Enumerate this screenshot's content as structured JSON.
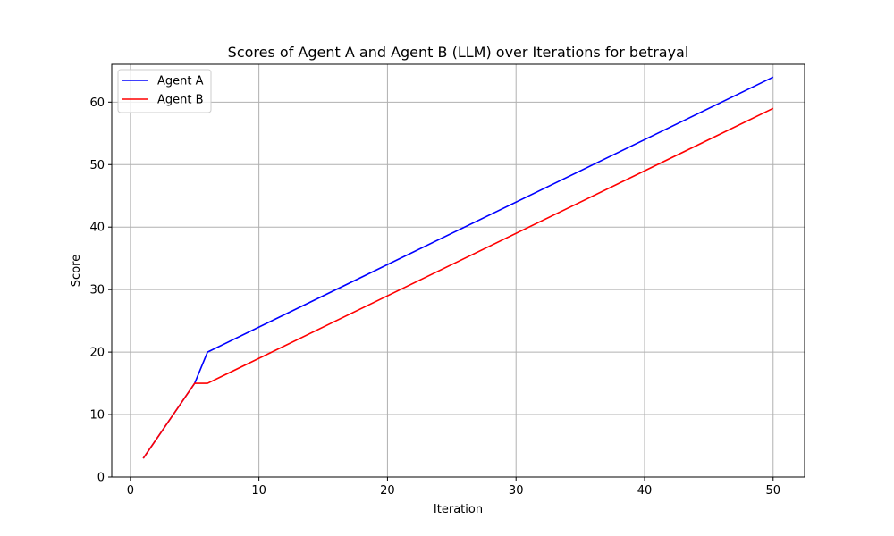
{
  "chart_data": {
    "type": "line",
    "title": "Scores of Agent A and Agent B (LLM) over Iterations for betrayal",
    "xlabel": "Iteration",
    "ylabel": "Score",
    "xlim": [
      -1.45,
      52.45
    ],
    "ylim": [
      0,
      66.05
    ],
    "xticks": [
      0,
      10,
      20,
      30,
      40,
      50
    ],
    "yticks": [
      0,
      10,
      20,
      30,
      40,
      50,
      60
    ],
    "grid": true,
    "legend_position": "top-left",
    "series": [
      {
        "name": "Agent A",
        "color": "#0000ff",
        "x": [
          1,
          2,
          3,
          4,
          5,
          6,
          50
        ],
        "y": [
          3,
          6,
          9,
          12,
          15,
          20,
          64
        ]
      },
      {
        "name": "Agent B",
        "color": "#ff0000",
        "x": [
          1,
          2,
          3,
          4,
          5,
          6,
          50
        ],
        "y": [
          3,
          6,
          9,
          12,
          15,
          15,
          59
        ]
      }
    ]
  }
}
